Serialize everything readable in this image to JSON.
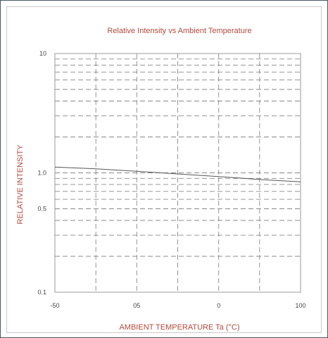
{
  "chart_data": {
    "type": "line",
    "title": "Relative Intensity vs Ambient Temperature",
    "xlabel": "AMBIENT TEMPERATURE Ta (°C)",
    "ylabel": "RELATIVE INTENSITY",
    "x_tick_labels": [
      "-50",
      "05",
      "0",
      "100"
    ],
    "y_tick_labels": [
      "10",
      "1.0",
      "0.5",
      "0.1"
    ],
    "xlim": [
      -50,
      100
    ],
    "ylim": [
      0.1,
      10
    ],
    "y_scale": "log",
    "grid": true,
    "grid_style": "dashed",
    "colors": {
      "title": "#b04a3e",
      "line": "#555555",
      "grid": "#888888"
    },
    "series": [
      {
        "x": [
          -50,
          -25,
          0,
          25,
          50,
          75,
          100
        ],
        "y": [
          1.12,
          1.08,
          1.03,
          0.98,
          0.93,
          0.88,
          0.84
        ]
      }
    ]
  }
}
